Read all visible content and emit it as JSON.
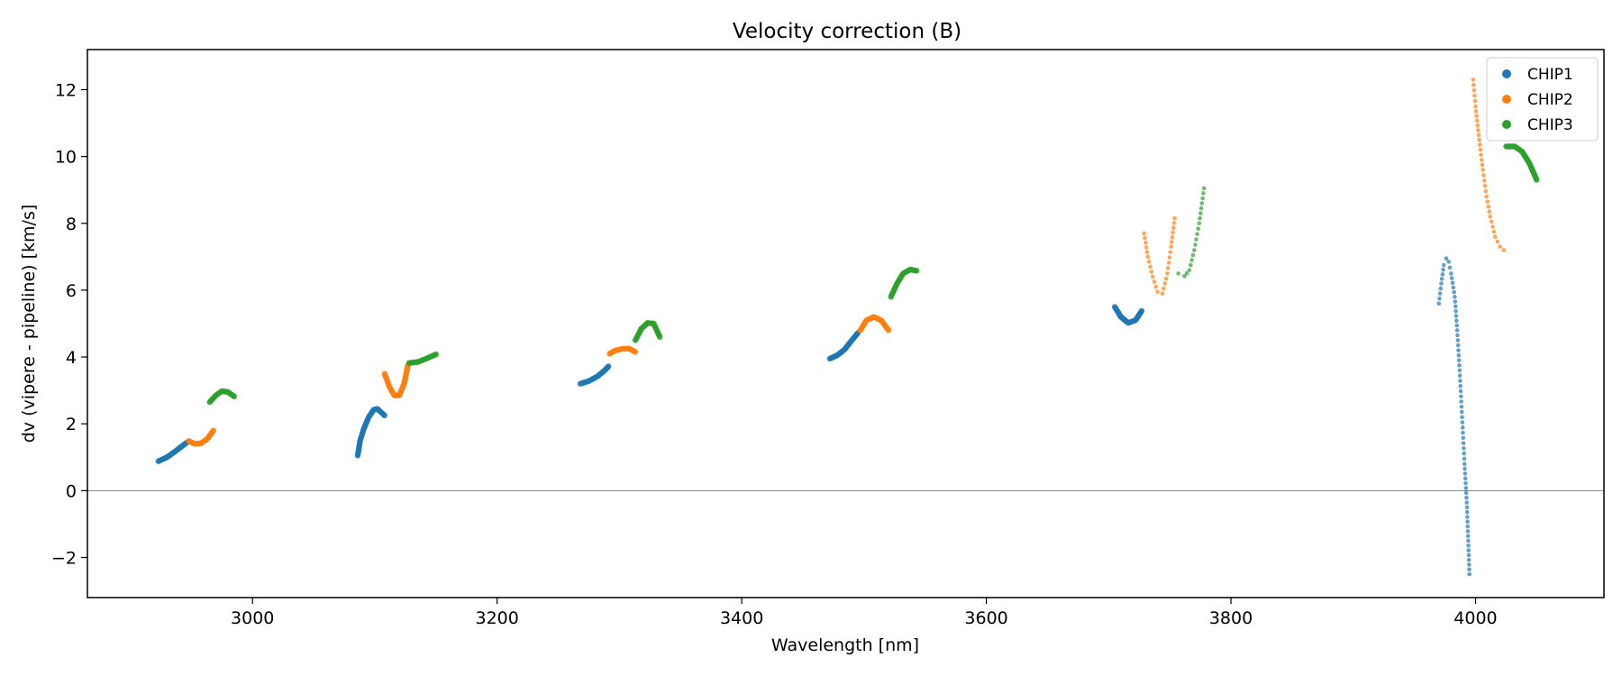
{
  "chart_data": {
    "type": "scatter",
    "title": "Velocity correction (B)",
    "xlabel": "Wavelength [nm]",
    "ylabel": "dv (vipere - pipeline) [km/s]",
    "xlim": [
      2865,
      4105
    ],
    "ylim": [
      -3.2,
      13.2
    ],
    "xticks": [
      3000,
      3200,
      3400,
      3600,
      3800,
      4000
    ],
    "xtick_labels": [
      "3000",
      "3200",
      "3400",
      "3600",
      "3800",
      "4000"
    ],
    "yticks": [
      -2,
      0,
      2,
      4,
      6,
      8,
      10,
      12
    ],
    "ytick_labels": [
      "−2",
      "0",
      "2",
      "4",
      "6",
      "8",
      "10",
      "12"
    ],
    "hline": 0,
    "legend_position": "top-right",
    "series": [
      {
        "name": "CHIP1",
        "color": "#1f77b4",
        "segments": [
          {
            "points": [
              [
                2923,
                0.88
              ],
              [
                2930,
                1.0
              ],
              [
                2937,
                1.18
              ],
              [
                2944,
                1.38
              ],
              [
                2948,
                1.48
              ]
            ]
          },
          {
            "points": [
              [
                3086,
                1.05
              ],
              [
                3088,
                1.5
              ],
              [
                3091,
                1.85
              ],
              [
                3095,
                2.2
              ],
              [
                3099,
                2.42
              ],
              [
                3102,
                2.45
              ],
              [
                3105,
                2.35
              ],
              [
                3108,
                2.25
              ]
            ]
          },
          {
            "points": [
              [
                3268,
                3.2
              ],
              [
                3275,
                3.28
              ],
              [
                3282,
                3.42
              ],
              [
                3288,
                3.6
              ],
              [
                3291,
                3.72
              ]
            ]
          },
          {
            "points": [
              [
                3472,
                3.95
              ],
              [
                3478,
                4.05
              ],
              [
                3484,
                4.22
              ],
              [
                3490,
                4.5
              ],
              [
                3495,
                4.72
              ]
            ]
          },
          {
            "points": [
              [
                3705,
                5.5
              ],
              [
                3710,
                5.2
              ],
              [
                3716,
                5.02
              ],
              [
                3722,
                5.1
              ],
              [
                3727,
                5.38
              ]
            ]
          },
          {
            "points": [
              [
                3970,
                5.6
              ],
              [
                3972,
                6.2
              ],
              [
                3974,
                6.75
              ],
              [
                3976,
                6.95
              ],
              [
                3978,
                6.85
              ],
              [
                3980,
                6.5
              ],
              [
                3983,
                5.8
              ],
              [
                3985,
                4.8
              ],
              [
                3987,
                3.6
              ],
              [
                3989,
                2.2
              ],
              [
                3991,
                0.8
              ],
              [
                3993,
                -0.5
              ],
              [
                3994,
                -1.5
              ],
              [
                3995,
                -2.5
              ]
            ],
            "sparse": true
          }
        ]
      },
      {
        "name": "CHIP2",
        "color": "#ff7f0e",
        "segments": [
          {
            "points": [
              [
                2948,
                1.48
              ],
              [
                2953,
                1.4
              ],
              [
                2958,
                1.42
              ],
              [
                2963,
                1.55
              ],
              [
                2968,
                1.8
              ]
            ]
          },
          {
            "points": [
              [
                3108,
                3.5
              ],
              [
                3112,
                3.1
              ],
              [
                3116,
                2.85
              ],
              [
                3120,
                2.85
              ],
              [
                3124,
                3.2
              ],
              [
                3127,
                3.75
              ]
            ]
          },
          {
            "points": [
              [
                3292,
                4.1
              ],
              [
                3297,
                4.2
              ],
              [
                3303,
                4.25
              ],
              [
                3308,
                4.25
              ],
              [
                3313,
                4.15
              ]
            ]
          },
          {
            "points": [
              [
                3497,
                4.8
              ],
              [
                3502,
                5.1
              ],
              [
                3508,
                5.2
              ],
              [
                3514,
                5.1
              ],
              [
                3520,
                4.8
              ]
            ]
          },
          {
            "points": [
              [
                3729,
                7.7
              ],
              [
                3732,
                7.0
              ],
              [
                3736,
                6.4
              ],
              [
                3740,
                5.95
              ],
              [
                3744,
                5.9
              ],
              [
                3748,
                6.5
              ],
              [
                3751,
                7.3
              ],
              [
                3754,
                8.15
              ]
            ],
            "sparse": true
          },
          {
            "points": [
              [
                3998,
                12.3
              ],
              [
                4000,
                11.5
              ],
              [
                4003,
                10.5
              ],
              [
                4006,
                9.6
              ],
              [
                4009,
                8.8
              ],
              [
                4012,
                8.2
              ],
              [
                4016,
                7.6
              ],
              [
                4020,
                7.3
              ],
              [
                4023,
                7.2
              ]
            ],
            "sparse": true
          }
        ]
      },
      {
        "name": "CHIP3",
        "color": "#2ca02c",
        "segments": [
          {
            "points": [
              [
                2965,
                2.65
              ],
              [
                2970,
                2.85
              ],
              [
                2975,
                2.98
              ],
              [
                2980,
                2.95
              ],
              [
                2985,
                2.82
              ]
            ]
          },
          {
            "points": [
              [
                3128,
                3.82
              ],
              [
                3135,
                3.85
              ],
              [
                3142,
                3.95
              ],
              [
                3150,
                4.08
              ]
            ]
          },
          {
            "points": [
              [
                3313,
                4.5
              ],
              [
                3318,
                4.85
              ],
              [
                3323,
                5.02
              ],
              [
                3328,
                5.0
              ],
              [
                3333,
                4.6
              ]
            ]
          },
          {
            "points": [
              [
                3522,
                5.8
              ],
              [
                3527,
                6.2
              ],
              [
                3532,
                6.5
              ],
              [
                3538,
                6.62
              ],
              [
                3543,
                6.58
              ]
            ]
          },
          {
            "points": [
              [
                3757,
                6.5
              ],
              [
                3762,
                6.42
              ],
              [
                3766,
                6.6
              ],
              [
                3770,
                7.2
              ],
              [
                3774,
                8.0
              ],
              [
                3778,
                9.05
              ]
            ],
            "sparse": true
          },
          {
            "points": [
              [
                4025,
                10.3
              ],
              [
                4032,
                10.3
              ],
              [
                4038,
                10.15
              ],
              [
                4044,
                9.8
              ],
              [
                4050,
                9.3
              ]
            ]
          }
        ]
      }
    ]
  }
}
